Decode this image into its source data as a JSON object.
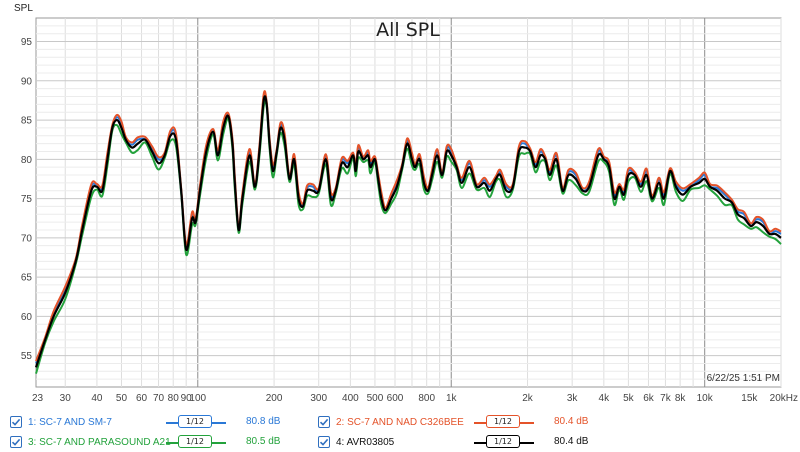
{
  "chart_data": {
    "type": "line",
    "title": "All SPL",
    "ylabel": "SPL",
    "xlabel": "",
    "x_scale": "log",
    "xlim": [
      23,
      20000
    ],
    "ylim": [
      51,
      98
    ],
    "grid": true,
    "x_ticks": [
      {
        "v": 23,
        "label": "23"
      },
      {
        "v": 30,
        "label": "30"
      },
      {
        "v": 40,
        "label": "40"
      },
      {
        "v": 50,
        "label": "50"
      },
      {
        "v": 60,
        "label": "60"
      },
      {
        "v": 70,
        "label": "70"
      },
      {
        "v": 80,
        "label": "80"
      },
      {
        "v": 90,
        "label": "90"
      },
      {
        "v": 100,
        "label": "100"
      },
      {
        "v": 200,
        "label": "200"
      },
      {
        "v": 300,
        "label": "300"
      },
      {
        "v": 400,
        "label": "400"
      },
      {
        "v": 500,
        "label": "500"
      },
      {
        "v": 600,
        "label": "600"
      },
      {
        "v": 800,
        "label": "800"
      },
      {
        "v": 1000,
        "label": "1k"
      },
      {
        "v": 2000,
        "label": "2k"
      },
      {
        "v": 3000,
        "label": "3k"
      },
      {
        "v": 4000,
        "label": "4k"
      },
      {
        "v": 5000,
        "label": "5k"
      },
      {
        "v": 6000,
        "label": "6k"
      },
      {
        "v": 7000,
        "label": "7k"
      },
      {
        "v": 8000,
        "label": "8k"
      },
      {
        "v": 10000,
        "label": "10k"
      },
      {
        "v": 15000,
        "label": "15k"
      },
      {
        "v": 20000,
        "label": "20kHz"
      }
    ],
    "y_ticks": [
      55,
      60,
      65,
      70,
      75,
      80,
      85,
      90,
      95
    ],
    "timestamp": "6/22/25 1:51 PM",
    "base_curve": [
      [
        23,
        53.5
      ],
      [
        25,
        57
      ],
      [
        27,
        60
      ],
      [
        30,
        63
      ],
      [
        33,
        67
      ],
      [
        35,
        71
      ],
      [
        38,
        76
      ],
      [
        40,
        76.5
      ],
      [
        42,
        76
      ],
      [
        44,
        80
      ],
      [
        46,
        84
      ],
      [
        48,
        85
      ],
      [
        50,
        84
      ],
      [
        52,
        82.5
      ],
      [
        55,
        81.5
      ],
      [
        58,
        82
      ],
      [
        62,
        82.5
      ],
      [
        66,
        81
      ],
      [
        70,
        79.5
      ],
      [
        74,
        80.5
      ],
      [
        78,
        83
      ],
      [
        82,
        82.5
      ],
      [
        86,
        76
      ],
      [
        90,
        68.5
      ],
      [
        95,
        72.5
      ],
      [
        98,
        72
      ],
      [
        102,
        76
      ],
      [
        108,
        81
      ],
      [
        115,
        83.5
      ],
      [
        120,
        80.5
      ],
      [
        126,
        84
      ],
      [
        132,
        85.5
      ],
      [
        137,
        82
      ],
      [
        140,
        77
      ],
      [
        145,
        71
      ],
      [
        150,
        75
      ],
      [
        160,
        80.5
      ],
      [
        168,
        76.5
      ],
      [
        175,
        81
      ],
      [
        182,
        87.5
      ],
      [
        187,
        87
      ],
      [
        192,
        82
      ],
      [
        198,
        78.5
      ],
      [
        205,
        81
      ],
      [
        212,
        84
      ],
      [
        220,
        82.5
      ],
      [
        230,
        77.5
      ],
      [
        240,
        80
      ],
      [
        250,
        75
      ],
      [
        260,
        74
      ],
      [
        270,
        76
      ],
      [
        285,
        76
      ],
      [
        300,
        76
      ],
      [
        320,
        80
      ],
      [
        335,
        75
      ],
      [
        350,
        76
      ],
      [
        370,
        79.5
      ],
      [
        390,
        79
      ],
      [
        410,
        80.5
      ],
      [
        420,
        78.5
      ],
      [
        430,
        81
      ],
      [
        450,
        80
      ],
      [
        470,
        80.5
      ],
      [
        480,
        79
      ],
      [
        500,
        80
      ],
      [
        515,
        77.5
      ],
      [
        530,
        75
      ],
      [
        550,
        73.5
      ],
      [
        580,
        75
      ],
      [
        610,
        76.5
      ],
      [
        640,
        79
      ],
      [
        670,
        82
      ],
      [
        700,
        80
      ],
      [
        720,
        79
      ],
      [
        750,
        80
      ],
      [
        780,
        77
      ],
      [
        810,
        76
      ],
      [
        840,
        78
      ],
      [
        880,
        80.5
      ],
      [
        920,
        78
      ],
      [
        960,
        81
      ],
      [
        1000,
        80.5
      ],
      [
        1050,
        79
      ],
      [
        1100,
        77
      ],
      [
        1180,
        79
      ],
      [
        1260,
        76.5
      ],
      [
        1350,
        77
      ],
      [
        1420,
        76
      ],
      [
        1500,
        77.5
      ],
      [
        1560,
        78
      ],
      [
        1650,
        76
      ],
      [
        1750,
        76.5
      ],
      [
        1850,
        81
      ],
      [
        1950,
        81.5
      ],
      [
        2050,
        81
      ],
      [
        2150,
        79
      ],
      [
        2250,
        80.5
      ],
      [
        2350,
        80
      ],
      [
        2450,
        78
      ],
      [
        2600,
        80
      ],
      [
        2750,
        76
      ],
      [
        2900,
        78
      ],
      [
        3100,
        77.5
      ],
      [
        3300,
        76
      ],
      [
        3500,
        76.5
      ],
      [
        3800,
        80.5
      ],
      [
        4000,
        80
      ],
      [
        4200,
        79
      ],
      [
        4400,
        75
      ],
      [
        4600,
        76.5
      ],
      [
        4800,
        75.5
      ],
      [
        5000,
        78
      ],
      [
        5300,
        78
      ],
      [
        5600,
        76.5
      ],
      [
        5900,
        78
      ],
      [
        6200,
        75
      ],
      [
        6600,
        77
      ],
      [
        6900,
        75
      ],
      [
        7300,
        78.5
      ],
      [
        7700,
        76.5
      ],
      [
        8200,
        75.5
      ],
      [
        8800,
        76.5
      ],
      [
        9500,
        77
      ],
      [
        10000,
        77.5
      ],
      [
        10500,
        76.5
      ],
      [
        11200,
        76
      ],
      [
        12000,
        75
      ],
      [
        12800,
        74.5
      ],
      [
        13500,
        73
      ],
      [
        14300,
        72.5
      ],
      [
        15200,
        71.5
      ],
      [
        16000,
        72
      ],
      [
        17000,
        71.5
      ],
      [
        18000,
        70.5
      ],
      [
        19000,
        70.5
      ],
      [
        20000,
        70
      ]
    ],
    "series": [
      {
        "name": "1: SC-7 AND SM-7",
        "color": "#2a78d6",
        "value": "80.8 dB",
        "offset": 0.25
      },
      {
        "name": "2: SC-7 AND NAD C326BEE",
        "color": "#e4532a",
        "value": "80.4 dB",
        "offset": 0.55
      },
      {
        "name": "3: SC-7 AND PARASOUND A21",
        "color": "#23a23c",
        "value": "80.5 dB",
        "offset": -0.55
      },
      {
        "name": "4: AVR03805",
        "color": "#000000",
        "value": "80.4 dB",
        "offset": 0.0
      }
    ],
    "legend_position": "bottom"
  },
  "legend": {
    "smoothing_label": "1/12",
    "checked": true
  }
}
